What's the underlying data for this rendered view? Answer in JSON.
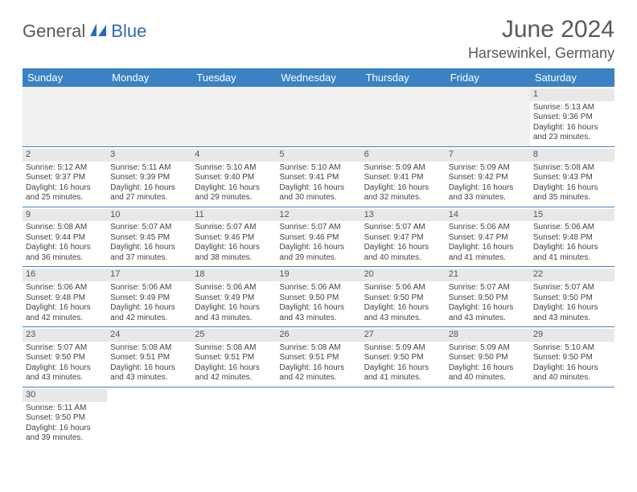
{
  "logo": {
    "part1": "General",
    "part2": "Blue"
  },
  "title": "June 2024",
  "location": "Harsewinkel, Germany",
  "colors": {
    "header_bg": "#3b82c4",
    "header_fg": "#ffffff",
    "daynum_bg": "#e8e8e8",
    "border": "#3b82c4",
    "logo_gray": "#595959",
    "logo_blue": "#2b6bb5"
  },
  "weekdays": [
    "Sunday",
    "Monday",
    "Tuesday",
    "Wednesday",
    "Thursday",
    "Friday",
    "Saturday"
  ],
  "days": {
    "1": {
      "sunrise": "5:13 AM",
      "sunset": "9:36 PM",
      "dl_h": 16,
      "dl_m": 23
    },
    "2": {
      "sunrise": "5:12 AM",
      "sunset": "9:37 PM",
      "dl_h": 16,
      "dl_m": 25
    },
    "3": {
      "sunrise": "5:11 AM",
      "sunset": "9:39 PM",
      "dl_h": 16,
      "dl_m": 27
    },
    "4": {
      "sunrise": "5:10 AM",
      "sunset": "9:40 PM",
      "dl_h": 16,
      "dl_m": 29
    },
    "5": {
      "sunrise": "5:10 AM",
      "sunset": "9:41 PM",
      "dl_h": 16,
      "dl_m": 30
    },
    "6": {
      "sunrise": "5:09 AM",
      "sunset": "9:41 PM",
      "dl_h": 16,
      "dl_m": 32
    },
    "7": {
      "sunrise": "5:09 AM",
      "sunset": "9:42 PM",
      "dl_h": 16,
      "dl_m": 33
    },
    "8": {
      "sunrise": "5:08 AM",
      "sunset": "9:43 PM",
      "dl_h": 16,
      "dl_m": 35
    },
    "9": {
      "sunrise": "5:08 AM",
      "sunset": "9:44 PM",
      "dl_h": 16,
      "dl_m": 36
    },
    "10": {
      "sunrise": "5:07 AM",
      "sunset": "9:45 PM",
      "dl_h": 16,
      "dl_m": 37
    },
    "11": {
      "sunrise": "5:07 AM",
      "sunset": "9:46 PM",
      "dl_h": 16,
      "dl_m": 38
    },
    "12": {
      "sunrise": "5:07 AM",
      "sunset": "9:46 PM",
      "dl_h": 16,
      "dl_m": 39
    },
    "13": {
      "sunrise": "5:07 AM",
      "sunset": "9:47 PM",
      "dl_h": 16,
      "dl_m": 40
    },
    "14": {
      "sunrise": "5:06 AM",
      "sunset": "9:47 PM",
      "dl_h": 16,
      "dl_m": 41
    },
    "15": {
      "sunrise": "5:06 AM",
      "sunset": "9:48 PM",
      "dl_h": 16,
      "dl_m": 41
    },
    "16": {
      "sunrise": "5:06 AM",
      "sunset": "9:48 PM",
      "dl_h": 16,
      "dl_m": 42
    },
    "17": {
      "sunrise": "5:06 AM",
      "sunset": "9:49 PM",
      "dl_h": 16,
      "dl_m": 42
    },
    "18": {
      "sunrise": "5:06 AM",
      "sunset": "9:49 PM",
      "dl_h": 16,
      "dl_m": 43
    },
    "19": {
      "sunrise": "5:06 AM",
      "sunset": "9:50 PM",
      "dl_h": 16,
      "dl_m": 43
    },
    "20": {
      "sunrise": "5:06 AM",
      "sunset": "9:50 PM",
      "dl_h": 16,
      "dl_m": 43
    },
    "21": {
      "sunrise": "5:07 AM",
      "sunset": "9:50 PM",
      "dl_h": 16,
      "dl_m": 43
    },
    "22": {
      "sunrise": "5:07 AM",
      "sunset": "9:50 PM",
      "dl_h": 16,
      "dl_m": 43
    },
    "23": {
      "sunrise": "5:07 AM",
      "sunset": "9:50 PM",
      "dl_h": 16,
      "dl_m": 43
    },
    "24": {
      "sunrise": "5:08 AM",
      "sunset": "9:51 PM",
      "dl_h": 16,
      "dl_m": 43
    },
    "25": {
      "sunrise": "5:08 AM",
      "sunset": "9:51 PM",
      "dl_h": 16,
      "dl_m": 42
    },
    "26": {
      "sunrise": "5:08 AM",
      "sunset": "9:51 PM",
      "dl_h": 16,
      "dl_m": 42
    },
    "27": {
      "sunrise": "5:09 AM",
      "sunset": "9:50 PM",
      "dl_h": 16,
      "dl_m": 41
    },
    "28": {
      "sunrise": "5:09 AM",
      "sunset": "9:50 PM",
      "dl_h": 16,
      "dl_m": 40
    },
    "29": {
      "sunrise": "5:10 AM",
      "sunset": "9:50 PM",
      "dl_h": 16,
      "dl_m": 40
    },
    "30": {
      "sunrise": "5:11 AM",
      "sunset": "9:50 PM",
      "dl_h": 16,
      "dl_m": 39
    }
  },
  "layout": {
    "first_weekday_index": 6,
    "num_days": 30
  },
  "labels": {
    "sunrise": "Sunrise:",
    "sunset": "Sunset:",
    "daylight_prefix": "Daylight:",
    "hours": "hours",
    "and": "and",
    "minutes": "minutes."
  }
}
